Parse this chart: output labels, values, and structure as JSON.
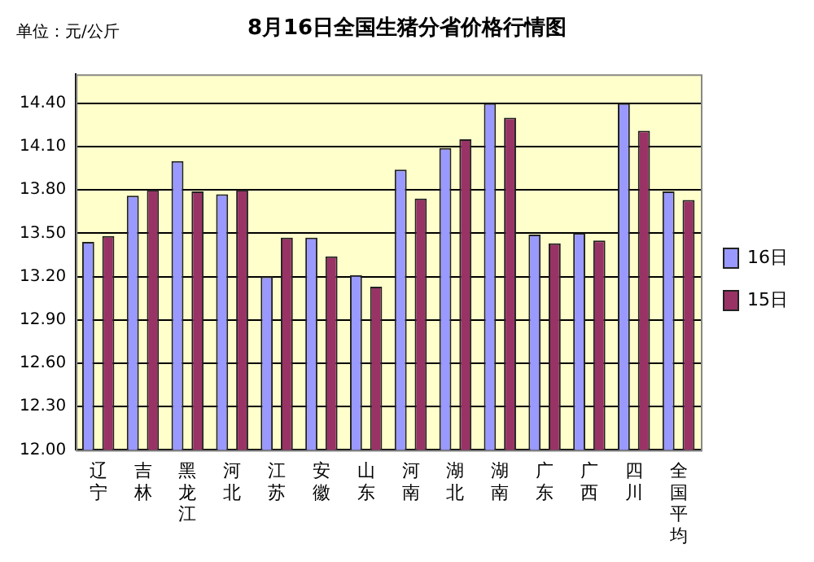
{
  "chart_data": {
    "type": "bar",
    "title": "8月16日全国生猪分省价格行情图",
    "annotations": [
      "单位：元/公斤"
    ],
    "categories": [
      "辽宁",
      "吉林",
      "黑龙江",
      "河北",
      "江苏",
      "安徽",
      "山东",
      "河南",
      "湖北",
      "湖南",
      "广东",
      "广西",
      "四川",
      "全国平均"
    ],
    "series": [
      {
        "name": "16日",
        "color": "#9999ff",
        "values": [
          13.44,
          13.76,
          14.0,
          13.77,
          13.2,
          13.47,
          13.21,
          13.94,
          14.09,
          14.4,
          13.49,
          13.5,
          14.4,
          13.79
        ]
      },
      {
        "name": "15日",
        "color": "#993366",
        "values": [
          13.48,
          13.8,
          13.79,
          13.8,
          13.47,
          13.34,
          13.13,
          13.74,
          14.15,
          14.3,
          13.43,
          13.45,
          14.21,
          13.73
        ]
      }
    ],
    "ylim": [
      12.0,
      14.6
    ],
    "yticks": [
      {
        "value": 12.0,
        "label": "12.00"
      },
      {
        "value": 12.3,
        "label": "12.30"
      },
      {
        "value": 12.6,
        "label": "12.60"
      },
      {
        "value": 12.9,
        "label": "12.90"
      },
      {
        "value": 13.2,
        "label": "13.20"
      },
      {
        "value": 13.5,
        "label": "13.50"
      },
      {
        "value": 13.8,
        "label": "13.80"
      },
      {
        "value": 14.1,
        "label": "14.10"
      },
      {
        "value": 14.4,
        "label": "14.40"
      }
    ],
    "grid": "y",
    "legend": "right"
  }
}
